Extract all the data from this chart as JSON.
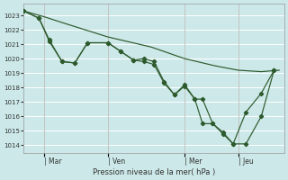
{
  "background_color": "#cce8e8",
  "grid_color": "#ffffff",
  "line_color": "#2d5a2d",
  "marker_color": "#2d5a2d",
  "title": "Pression niveau de la mer( hPa )",
  "ylim": [
    1013.5,
    1023.8
  ],
  "yticks": [
    1014,
    1015,
    1016,
    1017,
    1018,
    1019,
    1020,
    1021,
    1022,
    1023
  ],
  "xtick_labels": [
    "| Mar",
    "| Ven",
    "| Mer",
    "| Jeu"
  ],
  "xtick_positions": [
    0.08,
    0.33,
    0.63,
    0.84
  ],
  "smooth_line_x": [
    0.0,
    0.08,
    0.15,
    0.33,
    0.5,
    0.63,
    0.75,
    0.84,
    0.93,
    1.0
  ],
  "smooth_line_y": [
    1023.3,
    1022.9,
    1022.5,
    1021.5,
    1020.8,
    1020.0,
    1019.5,
    1019.2,
    1019.1,
    1019.2
  ],
  "line1_x": [
    0.0,
    0.06,
    0.1,
    0.15,
    0.2,
    0.25,
    0.33,
    0.38,
    0.43,
    0.47,
    0.51,
    0.55,
    0.59,
    0.63,
    0.67,
    0.7,
    0.74,
    0.78,
    0.82,
    0.87,
    0.93,
    0.98
  ],
  "line1_y": [
    1023.3,
    1022.8,
    1021.3,
    1019.8,
    1019.7,
    1021.1,
    1021.1,
    1020.5,
    1019.9,
    1020.0,
    1019.8,
    1018.4,
    1017.5,
    1018.2,
    1017.2,
    1017.2,
    1015.5,
    1014.9,
    1014.1,
    1014.1,
    1016.0,
    1019.2
  ],
  "line2_x": [
    0.0,
    0.06,
    0.1,
    0.15,
    0.2,
    0.25,
    0.33,
    0.38,
    0.43,
    0.47,
    0.51,
    0.55,
    0.59,
    0.63,
    0.67,
    0.7,
    0.74,
    0.78,
    0.82,
    0.87,
    0.93,
    0.98
  ],
  "line2_y": [
    1023.3,
    1022.8,
    1021.2,
    1019.8,
    1019.7,
    1021.1,
    1021.1,
    1020.5,
    1019.9,
    1019.8,
    1019.6,
    1018.3,
    1017.5,
    1018.1,
    1017.2,
    1015.5,
    1015.5,
    1014.8,
    1014.1,
    1016.3,
    1017.6,
    1019.2
  ],
  "xlim": [
    0.0,
    1.02
  ]
}
